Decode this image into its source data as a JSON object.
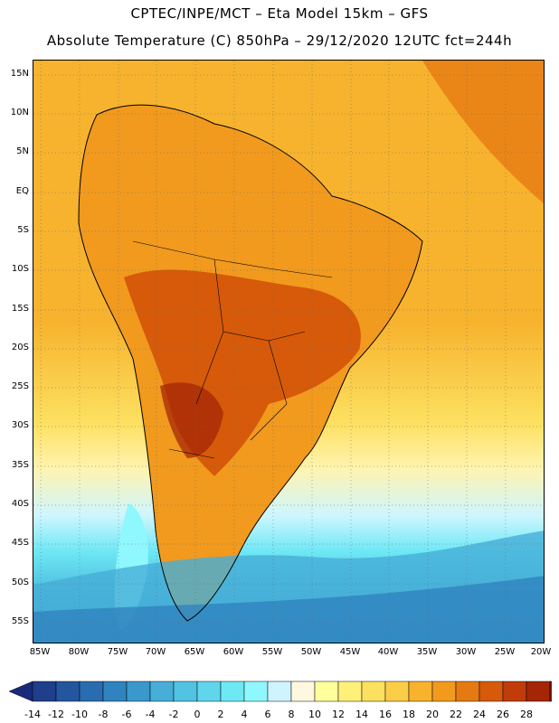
{
  "title_line1": "CPTEC/INPE/MCT –  Eta Model 15km – GFS",
  "title_line2": "Absolute Temperature (C) 850hPa – 29/12/2020 12UTC fct=244h",
  "lat_labels": [
    "15N",
    "10N",
    "5N",
    "EQ",
    "5S",
    "10S",
    "15S",
    "20S",
    "25S",
    "30S",
    "35S",
    "40S",
    "45S",
    "50S",
    "55S"
  ],
  "lon_labels": [
    "85W",
    "80W",
    "75W",
    "70W",
    "65W",
    "60W",
    "55W",
    "50W",
    "45W",
    "40W",
    "35W",
    "30W",
    "25W",
    "20W"
  ],
  "colorbar": {
    "labels": [
      "-14",
      "-12",
      "-10",
      "-8",
      "-6",
      "-4",
      "-2",
      "0",
      "2",
      "4",
      "6",
      "8",
      "10",
      "12",
      "14",
      "16",
      "18",
      "20",
      "22",
      "24",
      "26",
      "28"
    ],
    "colors": [
      "#1f3e8c",
      "#2456a0",
      "#2a6cb0",
      "#2f83bf",
      "#3a98cc",
      "#46aed7",
      "#52c3e2",
      "#5fd6ec",
      "#6fe8f5",
      "#8ff8ff",
      "#d0f4ff",
      "#fff8e0",
      "#ffff9c",
      "#fff07a",
      "#fde060",
      "#fbcd48",
      "#f7b32e",
      "#f19a1e",
      "#e67a12",
      "#d65a0a",
      "#c03c08",
      "#a42606",
      "#86180a"
    ],
    "left_arrow_color": "#1a2a7a",
    "right_arrow_color": "#6a0a14"
  }
}
